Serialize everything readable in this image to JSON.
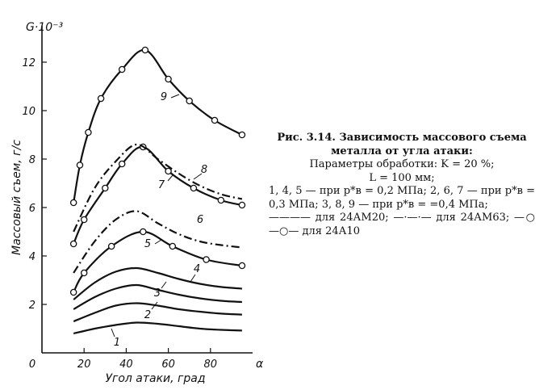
{
  "chart_data": {
    "type": "line",
    "xlabel": "Угол атаки, град",
    "ylabel": "Массовый съем, г/с",
    "y_multiplier_label": "G·10⁻³",
    "x_axis_end_symbol": "α",
    "xlim": [
      0,
      100
    ],
    "ylim": [
      0,
      13.5
    ],
    "x_ticks": [
      0,
      20,
      40,
      60,
      80
    ],
    "y_ticks": [
      2,
      4,
      6,
      8,
      10,
      12
    ],
    "series": [
      {
        "name": "1",
        "style": "solid",
        "markers": false,
        "x": [
          15,
          25,
          35,
          45,
          55,
          65,
          75,
          85,
          95
        ],
        "y": [
          0.8,
          1.0,
          1.15,
          1.25,
          1.2,
          1.1,
          1.0,
          0.95,
          0.92
        ]
      },
      {
        "name": "2",
        "style": "solid",
        "markers": false,
        "x": [
          15,
          25,
          35,
          45,
          55,
          65,
          75,
          85,
          95
        ],
        "y": [
          1.3,
          1.65,
          1.95,
          2.05,
          1.95,
          1.8,
          1.7,
          1.62,
          1.58
        ]
      },
      {
        "name": "3",
        "style": "solid",
        "markers": false,
        "x": [
          15,
          25,
          35,
          45,
          55,
          65,
          75,
          85,
          95
        ],
        "y": [
          1.8,
          2.3,
          2.65,
          2.8,
          2.6,
          2.4,
          2.25,
          2.15,
          2.1
        ]
      },
      {
        "name": "4",
        "style": "solid",
        "markers": false,
        "x": [
          15,
          25,
          35,
          45,
          55,
          65,
          75,
          85,
          95
        ],
        "y": [
          2.2,
          2.9,
          3.35,
          3.5,
          3.3,
          3.05,
          2.85,
          2.72,
          2.65
        ]
      },
      {
        "name": "5",
        "style": "solid",
        "markers": true,
        "x": [
          15,
          20,
          33,
          48,
          62,
          78,
          95
        ],
        "y": [
          2.5,
          3.3,
          4.4,
          5.0,
          4.4,
          3.85,
          3.6
        ]
      },
      {
        "name": "6",
        "style": "dashdot",
        "markers": false,
        "x": [
          15,
          25,
          35,
          45,
          55,
          65,
          75,
          85,
          95
        ],
        "y": [
          3.3,
          4.6,
          5.5,
          5.85,
          5.35,
          4.9,
          4.6,
          4.45,
          4.35
        ]
      },
      {
        "name": "7",
        "style": "solid",
        "markers": true,
        "x": [
          15,
          20,
          30,
          38,
          48,
          60,
          72,
          85,
          95
        ],
        "y": [
          4.5,
          5.5,
          6.8,
          7.8,
          8.5,
          7.5,
          6.8,
          6.3,
          6.1
        ]
      },
      {
        "name": "8",
        "style": "dashdot",
        "markers": false,
        "x": [
          15,
          25,
          35,
          45,
          55,
          65,
          75,
          85,
          95
        ],
        "y": [
          5.0,
          6.8,
          7.9,
          8.6,
          8.0,
          7.4,
          6.9,
          6.55,
          6.35
        ]
      },
      {
        "name": "9",
        "style": "solid",
        "markers": true,
        "x": [
          15,
          18,
          22,
          28,
          38,
          49,
          60,
          70,
          82,
          95
        ],
        "y": [
          6.2,
          7.75,
          9.1,
          10.5,
          11.7,
          12.5,
          11.3,
          10.4,
          9.6,
          9.0
        ]
      }
    ]
  },
  "caption": {
    "title_1": "Рис. 3.14. Зависимость массового съема",
    "title_2": "металла от угла атаки:",
    "line_1": "Параметры обработки: K = 20 %;",
    "line_2": "L = 100 мм;",
    "line_3": "1, 4, 5 — при p*в = 0,2 МПа; 2, 6, 7 — при p*в = 0,3 МПа; 3, 8, 9 — при p*в = =0,4 МПа;",
    "line_4": "———— для 24АМ20; —·—·— для 24АМ63; —○—○— для 24А10"
  }
}
